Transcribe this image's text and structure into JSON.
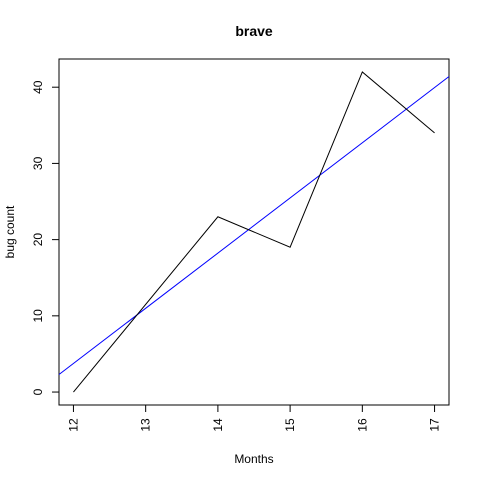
{
  "chart_data": {
    "type": "line",
    "title": "brave",
    "xlabel": "Months",
    "ylabel": "bug count",
    "x_ticks": [
      12,
      13,
      14,
      15,
      16,
      17
    ],
    "y_ticks": [
      0,
      10,
      20,
      30,
      40
    ],
    "xlim": [
      11.8,
      17.2
    ],
    "ylim": [
      -1.7,
      43.7
    ],
    "grid": false,
    "series": [
      {
        "x": [
          12,
          14,
          15,
          16,
          17
        ],
        "y": [
          0,
          23,
          19,
          42,
          34
        ],
        "color": "#000000"
      }
    ],
    "trend_line": {
      "x": [
        11.8,
        17.2
      ],
      "y": [
        2.3,
        41.4
      ],
      "color": "#0000ff"
    }
  }
}
